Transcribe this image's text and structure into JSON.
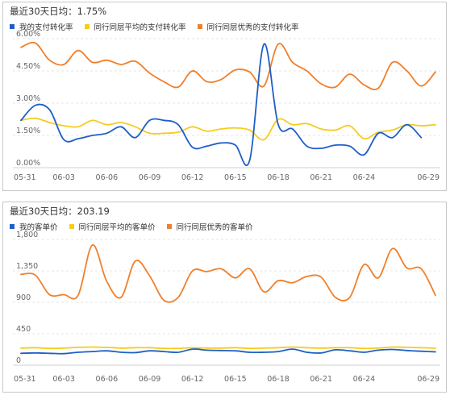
{
  "chart_data": [
    {
      "type": "line",
      "title": "最近30天日均：1.75%",
      "x": [
        "05-31",
        "06-01",
        "06-02",
        "06-03",
        "06-04",
        "06-05",
        "06-06",
        "06-07",
        "06-08",
        "06-09",
        "06-10",
        "06-11",
        "06-12",
        "06-13",
        "06-14",
        "06-15",
        "06-16",
        "06-17",
        "06-18",
        "06-19",
        "06-20",
        "06-21",
        "06-22",
        "06-23",
        "06-24",
        "06-25",
        "06-26",
        "06-27",
        "06-28",
        "06-29"
      ],
      "x_ticks": [
        "05-31",
        "06-03",
        "06-06",
        "06-09",
        "06-12",
        "06-15",
        "06-18",
        "06-21",
        "06-24",
        "06-29"
      ],
      "y_ticks": [
        "0.00%",
        "1.50%",
        "3.00%",
        "4.50%",
        "6.00%"
      ],
      "ylim": [
        0,
        6
      ],
      "series": [
        {
          "name": "我的支付转化率",
          "color": "#1f5fc7",
          "values": [
            2.2,
            2.9,
            2.7,
            1.3,
            1.35,
            1.5,
            1.6,
            1.9,
            1.4,
            2.2,
            2.2,
            2.0,
            0.95,
            1.0,
            1.15,
            1.05,
            0.35,
            5.75,
            2.0,
            1.8,
            1.0,
            0.9,
            1.05,
            1.0,
            0.6,
            1.6,
            1.4,
            2.0,
            1.4,
            null
          ]
        },
        {
          "name": "同行同层平均的支付转化率",
          "color": "#f5cc1f",
          "values": [
            2.2,
            2.3,
            2.1,
            1.95,
            1.9,
            2.2,
            2.0,
            2.1,
            1.9,
            1.6,
            1.6,
            1.65,
            1.9,
            1.7,
            1.8,
            1.85,
            1.75,
            1.3,
            2.25,
            2.0,
            2.05,
            1.8,
            1.75,
            1.95,
            1.35,
            1.65,
            1.75,
            2.0,
            1.95,
            2.0
          ]
        },
        {
          "name": "同行同层优秀的支付转化率",
          "color": "#f07f2a",
          "values": [
            5.6,
            5.8,
            5.0,
            4.8,
            5.45,
            4.9,
            5.0,
            4.8,
            4.95,
            4.4,
            4.0,
            3.75,
            4.5,
            4.0,
            4.1,
            4.55,
            4.45,
            3.8,
            5.75,
            4.9,
            4.5,
            3.9,
            3.75,
            4.35,
            3.85,
            3.7,
            4.9,
            4.5,
            3.8,
            4.45
          ]
        }
      ]
    },
    {
      "type": "line",
      "title": "最近30天日均：203.19",
      "x": [
        "05-31",
        "06-01",
        "06-02",
        "06-03",
        "06-04",
        "06-05",
        "06-06",
        "06-07",
        "06-08",
        "06-09",
        "06-10",
        "06-11",
        "06-12",
        "06-13",
        "06-14",
        "06-15",
        "06-16",
        "06-17",
        "06-18",
        "06-19",
        "06-20",
        "06-21",
        "06-22",
        "06-23",
        "06-24",
        "06-25",
        "06-26",
        "06-27",
        "06-28",
        "06-29"
      ],
      "x_ticks": [
        "05-31",
        "06-03",
        "06-06",
        "06-09",
        "06-12",
        "06-15",
        "06-18",
        "06-21",
        "06-24",
        "06-29"
      ],
      "y_ticks": [
        "0",
        "450",
        "900",
        "1,350",
        "1,800"
      ],
      "ylim": [
        0,
        1800
      ],
      "series": [
        {
          "name": "我的客单价",
          "color": "#1f5fc7",
          "values": [
            170,
            175,
            170,
            165,
            185,
            195,
            205,
            185,
            180,
            205,
            195,
            185,
            230,
            215,
            210,
            205,
            185,
            185,
            195,
            230,
            185,
            175,
            220,
            205,
            185,
            215,
            225,
            210,
            200,
            190
          ]
        },
        {
          "name": "同行同层平均的客单价",
          "color": "#f5cc1f",
          "values": [
            245,
            250,
            240,
            245,
            255,
            260,
            255,
            245,
            250,
            250,
            240,
            240,
            250,
            245,
            245,
            250,
            240,
            245,
            250,
            260,
            250,
            245,
            250,
            250,
            240,
            245,
            260,
            255,
            250,
            245
          ]
        },
        {
          "name": "同行同层优秀的客单价",
          "color": "#f07f2a",
          "values": [
            1300,
            1290,
            1010,
            1010,
            1000,
            1720,
            1200,
            970,
            1490,
            1280,
            930,
            970,
            1350,
            1340,
            1380,
            1250,
            1380,
            1050,
            1210,
            1180,
            1270,
            1260,
            970,
            970,
            1440,
            1250,
            1670,
            1390,
            1380,
            1000
          ]
        }
      ]
    }
  ]
}
